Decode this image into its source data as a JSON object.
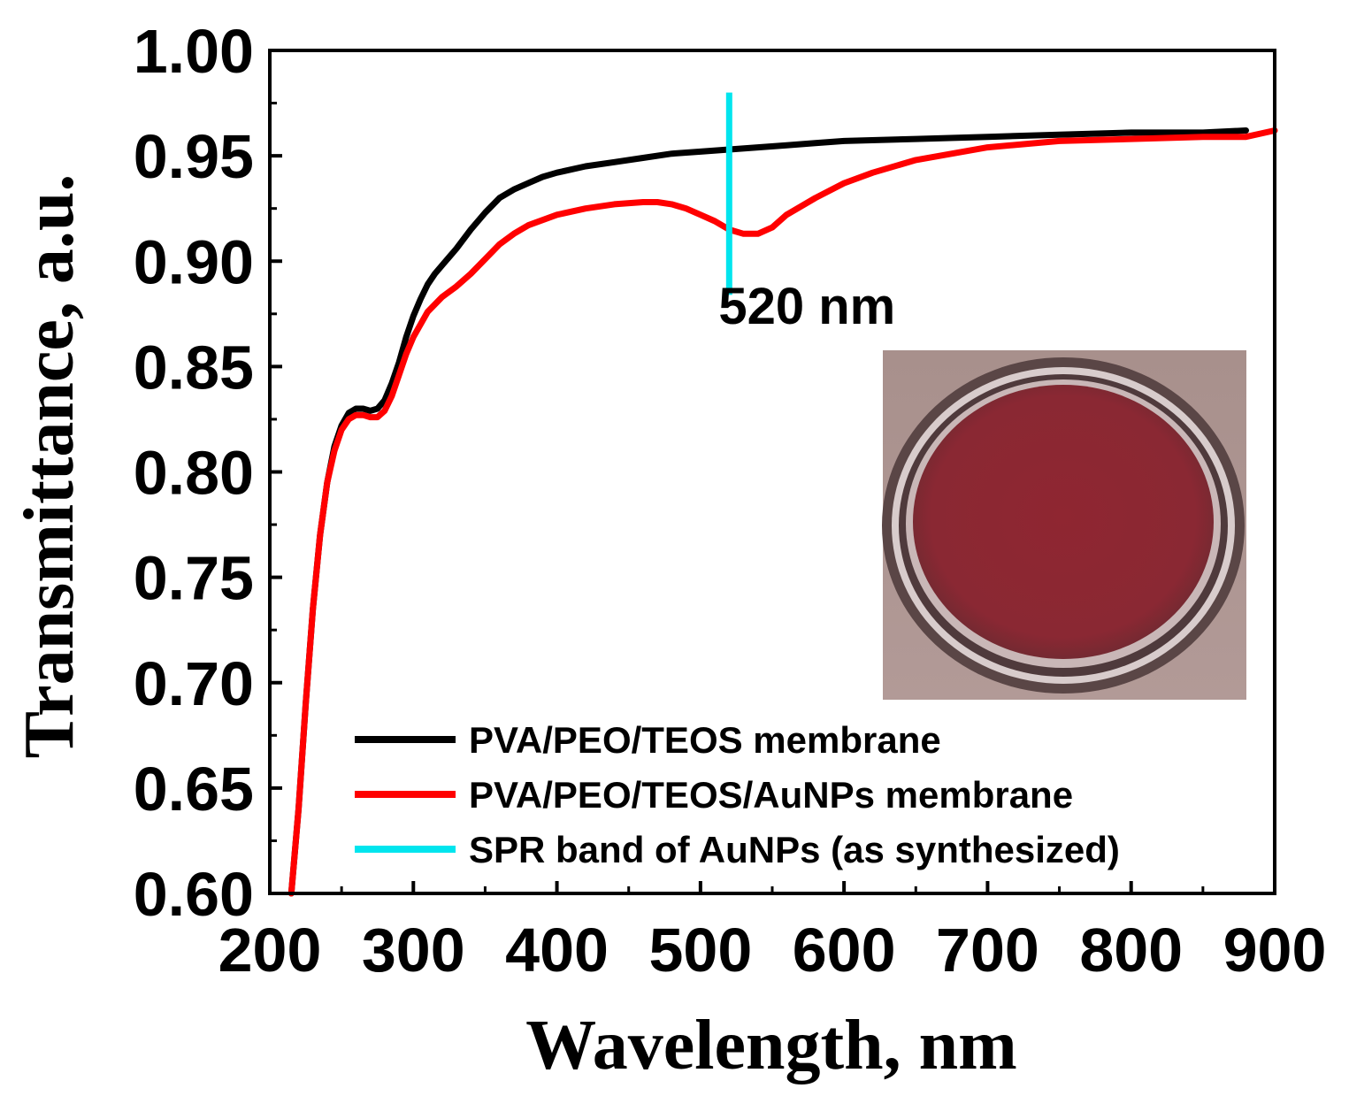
{
  "chart_data": {
    "type": "line",
    "title": "",
    "xlabel": "Wavelength, nm",
    "ylabel": "Transmittance, a.u.",
    "xlim": [
      200,
      900
    ],
    "ylim": [
      0.6,
      1.0
    ],
    "xticks": [
      200,
      300,
      400,
      500,
      600,
      700,
      800,
      900
    ],
    "xtick_labels": [
      "200",
      "300",
      "400",
      "500",
      "600",
      "700",
      "800",
      "900"
    ],
    "yticks": [
      0.6,
      0.65,
      0.7,
      0.75,
      0.8,
      0.85,
      0.9,
      0.95,
      1.0
    ],
    "ytick_labels": [
      "0.60",
      "0.65",
      "0.70",
      "0.75",
      "0.80",
      "0.85",
      "0.90",
      "0.95",
      "1.00"
    ],
    "legend_position": "bottom-center",
    "series": [
      {
        "name": "PVA/PEO/TEOS membrane",
        "color": "#000000",
        "x": [
          215,
          220,
          225,
          230,
          235,
          240,
          245,
          250,
          255,
          260,
          265,
          270,
          275,
          280,
          285,
          290,
          295,
          300,
          305,
          310,
          315,
          320,
          330,
          340,
          350,
          360,
          370,
          380,
          390,
          400,
          420,
          440,
          460,
          480,
          500,
          520,
          540,
          560,
          580,
          600,
          650,
          700,
          750,
          800,
          850,
          880
        ],
        "y": [
          0.6,
          0.64,
          0.69,
          0.735,
          0.77,
          0.795,
          0.812,
          0.822,
          0.828,
          0.83,
          0.83,
          0.829,
          0.83,
          0.834,
          0.842,
          0.852,
          0.864,
          0.874,
          0.882,
          0.889,
          0.894,
          0.898,
          0.906,
          0.915,
          0.923,
          0.93,
          0.934,
          0.937,
          0.94,
          0.942,
          0.945,
          0.947,
          0.949,
          0.951,
          0.952,
          0.953,
          0.954,
          0.955,
          0.956,
          0.957,
          0.958,
          0.959,
          0.96,
          0.961,
          0.961,
          0.962
        ]
      },
      {
        "name": "PVA/PEO/TEOS/AuNPs  membrane",
        "color": "#ff0000",
        "x": [
          215,
          220,
          225,
          230,
          235,
          240,
          245,
          250,
          255,
          260,
          265,
          270,
          275,
          280,
          285,
          290,
          295,
          300,
          305,
          310,
          320,
          330,
          340,
          350,
          360,
          370,
          380,
          400,
          420,
          440,
          460,
          470,
          480,
          490,
          500,
          510,
          520,
          530,
          540,
          550,
          560,
          580,
          600,
          620,
          650,
          700,
          750,
          800,
          850,
          880,
          900
        ],
        "y": [
          0.6,
          0.64,
          0.69,
          0.735,
          0.77,
          0.795,
          0.81,
          0.82,
          0.825,
          0.827,
          0.827,
          0.826,
          0.826,
          0.829,
          0.836,
          0.846,
          0.856,
          0.864,
          0.87,
          0.876,
          0.883,
          0.888,
          0.894,
          0.901,
          0.908,
          0.913,
          0.917,
          0.922,
          0.925,
          0.927,
          0.928,
          0.928,
          0.927,
          0.925,
          0.922,
          0.919,
          0.915,
          0.913,
          0.913,
          0.916,
          0.922,
          0.93,
          0.937,
          0.942,
          0.948,
          0.954,
          0.957,
          0.958,
          0.959,
          0.959,
          0.962
        ]
      },
      {
        "name": "SPR band of AuNPs (as synthesized)",
        "color": "#00e5ee",
        "type": "vline",
        "x": 520,
        "y_range": [
          0.884,
          0.98
        ]
      }
    ],
    "annotations": [
      {
        "text": "520 nm",
        "x": 520,
        "y": 0.882
      }
    ],
    "inset": {
      "description_name": "petri-dish-photo",
      "dish_color": "#8e2a35",
      "background_color": "#a99090"
    }
  }
}
